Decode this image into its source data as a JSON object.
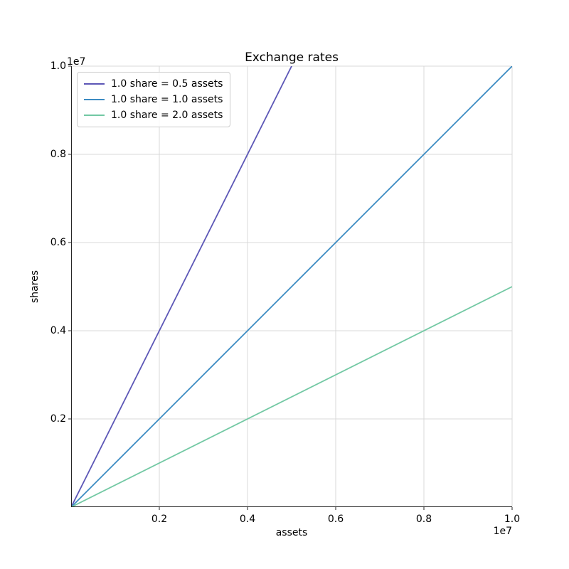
{
  "chart_data": {
    "type": "line",
    "title": "Exchange rates",
    "xlabel": "assets",
    "ylabel": "shares",
    "x_offset_text": "1e7",
    "y_offset_text": "1e7",
    "xlim": [
      0,
      10000000
    ],
    "ylim": [
      0,
      10000000
    ],
    "grid": true,
    "legend_position": "upper left",
    "xticks": {
      "values": [
        2000000,
        4000000,
        6000000,
        8000000,
        10000000
      ],
      "labels": [
        "0.2",
        "0.4",
        "0.6",
        "0.8",
        "1.0"
      ]
    },
    "yticks": {
      "values": [
        2000000,
        4000000,
        6000000,
        8000000,
        10000000
      ],
      "labels": [
        "0.2",
        "0.4",
        "0.6",
        "0.8",
        "1.0"
      ]
    },
    "series": [
      {
        "name": "1.0 share = 0.5 assets",
        "color": "#5c56b6",
        "x": [
          0,
          10000000
        ],
        "y": [
          0,
          20000000
        ]
      },
      {
        "name": "1.0 share = 1.0 assets",
        "color": "#3b8bc2",
        "x": [
          0,
          10000000
        ],
        "y": [
          0,
          10000000
        ]
      },
      {
        "name": "1.0 share = 2.0 assets",
        "color": "#72c8a3",
        "x": [
          0,
          10000000
        ],
        "y": [
          0,
          5000000
        ]
      }
    ],
    "colors": {
      "grid": "#d9d9d9",
      "spine": "#262626",
      "text": "#000000",
      "legend_border": "#cccccc"
    }
  }
}
